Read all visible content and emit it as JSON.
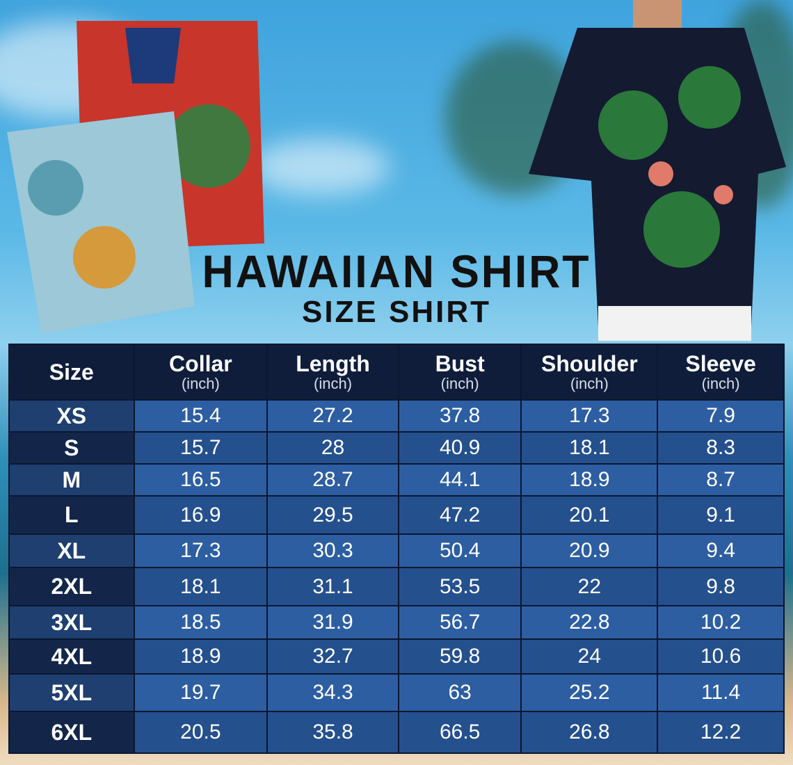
{
  "title": "HAWAIIAN SHIRT",
  "subtitle": "SIZE SHIRT",
  "table": {
    "headers": [
      {
        "label": "Size",
        "unit": ""
      },
      {
        "label": "Collar",
        "unit": "(inch)"
      },
      {
        "label": "Length",
        "unit": "(inch)"
      },
      {
        "label": "Bust",
        "unit": "(inch)"
      },
      {
        "label": "Shoulder",
        "unit": "(inch)"
      },
      {
        "label": "Sleeve",
        "unit": "(inch)"
      }
    ],
    "rows": [
      [
        "XS",
        "15.4",
        "27.2",
        "37.8",
        "17.3",
        "7.9"
      ],
      [
        "S",
        "15.7",
        "28",
        "40.9",
        "18.1",
        "8.3"
      ],
      [
        "M",
        "16.5",
        "28.7",
        "44.1",
        "18.9",
        "8.7"
      ],
      [
        "L",
        "16.9",
        "29.5",
        "47.2",
        "20.1",
        "9.1"
      ],
      [
        "XL",
        "17.3",
        "30.3",
        "50.4",
        "20.9",
        "9.4"
      ],
      [
        "2XL",
        "18.1",
        "31.1",
        "53.5",
        "22",
        "9.8"
      ],
      [
        "3XL",
        "18.5",
        "31.9",
        "56.7",
        "22.8",
        "10.2"
      ],
      [
        "4XL",
        "18.9",
        "32.7",
        "59.8",
        "24",
        "10.6"
      ],
      [
        "5XL",
        "19.7",
        "34.3",
        "63",
        "25.2",
        "11.4"
      ],
      [
        "6XL",
        "20.5",
        "35.8",
        "66.5",
        "26.8",
        "12.2"
      ]
    ]
  },
  "colors": {
    "header_bg": "#0f1d3b",
    "row_light": "#2d5ea2",
    "row_dark": "#25508e"
  }
}
